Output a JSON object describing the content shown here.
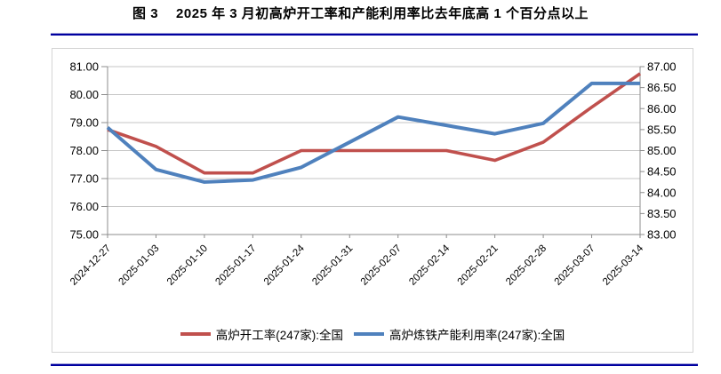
{
  "title": {
    "prefix": "图 3",
    "text": "2025 年 3 月初高炉开工率和产能利用率比去年底高 1 个百分点以上"
  },
  "chart_data": {
    "type": "line",
    "categories": [
      "2024-12-27",
      "2025-01-03",
      "2025-01-10",
      "2025-01-17",
      "2025-01-24",
      "2025-01-31",
      "2025-02-07",
      "2025-02-14",
      "2025-02-21",
      "2025-02-28",
      "2025-03-07",
      "2025-03-14"
    ],
    "series": [
      {
        "name": "高炉开工率(247家):全国",
        "axis": "left",
        "color": "#C0504D",
        "values": [
          78.75,
          78.15,
          77.2,
          77.2,
          78.0,
          78.0,
          78.0,
          78.0,
          77.65,
          78.3,
          79.55,
          80.75
        ]
      },
      {
        "name": "高炉炼铁产能利用率(247家):全国",
        "axis": "right",
        "color": "#4F81BD",
        "values": [
          85.55,
          84.55,
          84.25,
          84.3,
          84.6,
          85.2,
          85.8,
          85.6,
          85.4,
          85.65,
          86.6,
          86.6
        ]
      }
    ],
    "left_axis": {
      "min": 75,
      "max": 81,
      "step": 1.0,
      "labels": [
        "81.00",
        "80.00",
        "79.00",
        "78.00",
        "77.00",
        "76.00",
        "75.00"
      ]
    },
    "right_axis": {
      "min": 83,
      "max": 87,
      "step": 0.5,
      "labels": [
        "87.00",
        "86.50",
        "86.00",
        "85.50",
        "85.00",
        "84.50",
        "84.00",
        "83.50",
        "83.00"
      ]
    },
    "grid": true,
    "legend_position": "bottom",
    "x_label_angle": 45
  },
  "colors": {
    "grid": "#c6c6c6",
    "axis": "#8c8c8c",
    "frame_border": "#d4d4d4",
    "rule": "#0000A0"
  }
}
